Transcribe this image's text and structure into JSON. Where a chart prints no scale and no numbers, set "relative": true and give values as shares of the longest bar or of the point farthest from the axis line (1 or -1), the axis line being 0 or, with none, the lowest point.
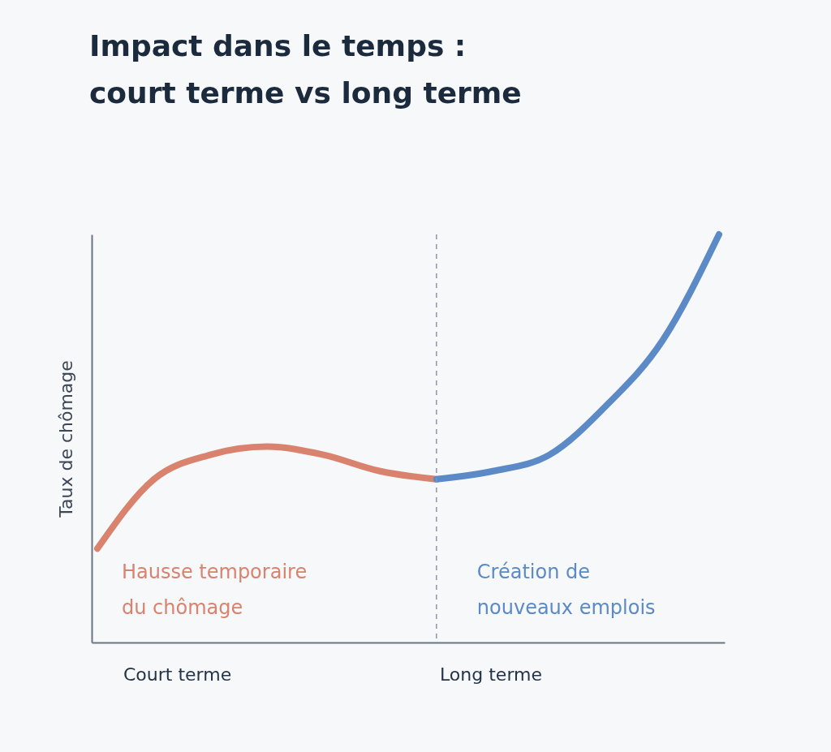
{
  "chart_data": {
    "type": "line",
    "title": "Impact dans le temps : court terme vs long terme",
    "ylabel": "Taux de chômage",
    "relative": true,
    "categories": [
      null,
      null,
      null,
      null,
      null,
      null,
      null,
      null,
      null,
      null,
      null,
      null
    ],
    "series": [
      {
        "name": "Hausse temporaire du chômage",
        "color": "#d9826e",
        "values": [
          0.23,
          0.4,
          0.46,
          0.48,
          0.46,
          0.42,
          0.4,
          null,
          null,
          null,
          null,
          null
        ]
      },
      {
        "name": "Création de nouveaux emplois",
        "color": "#5b8ac6",
        "values": [
          null,
          null,
          null,
          null,
          null,
          null,
          0.4,
          0.42,
          0.46,
          0.58,
          0.74,
          1.0
        ]
      }
    ],
    "annotations": [
      "Court terme",
      "Long terme"
    ],
    "marker": "none",
    "line_style": "solid"
  }
}
